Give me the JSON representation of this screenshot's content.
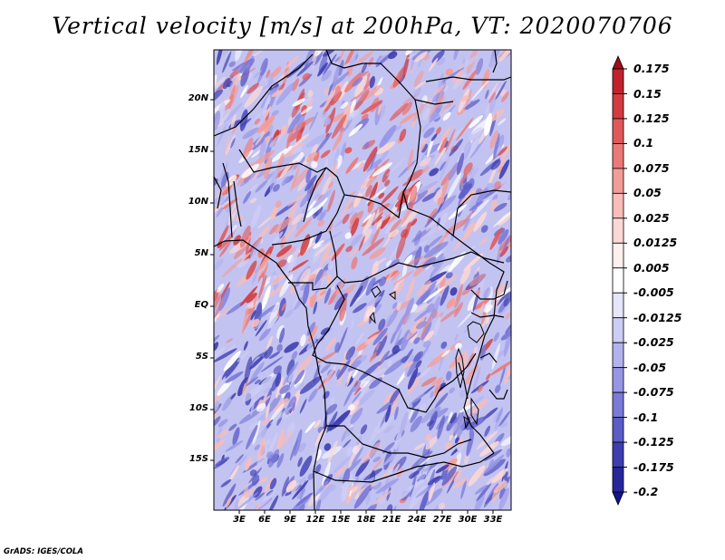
{
  "title": "Vertical velocity [m/s] at 200hPa, VT: 2020070706",
  "credit": "GrADS: IGES/COLA",
  "lat_labels": [
    "20N",
    "15N",
    "10N",
    "5N",
    "EQ",
    "5S",
    "10S",
    "15S"
  ],
  "lon_labels": [
    "3E",
    "6E",
    "9E",
    "12E",
    "15E",
    "18E",
    "21E",
    "24E",
    "27E",
    "30E",
    "33E"
  ],
  "colorbar": {
    "labels": [
      "0.175",
      "0.15",
      "0.125",
      "0.1",
      "0.075",
      "0.05",
      "0.025",
      "0.0125",
      "0.005",
      "-0.005",
      "-0.0125",
      "-0.025",
      "-0.05",
      "-0.075",
      "-0.1",
      "-0.125",
      "-0.175",
      "-0.2"
    ],
    "colors": [
      "#a10e17",
      "#c0232b",
      "#d33c3f",
      "#e0595a",
      "#ea7a78",
      "#f29c98",
      "#f8bdb8",
      "#fcd8d4",
      "#fff0ee",
      "#ffffff",
      "#e6e6fa",
      "#cdcdf5",
      "#b2b2ee",
      "#9696e6",
      "#7a7ad8",
      "#5c5cc6",
      "#3e3eb0",
      "#26269a",
      "#14148a"
    ]
  }
}
